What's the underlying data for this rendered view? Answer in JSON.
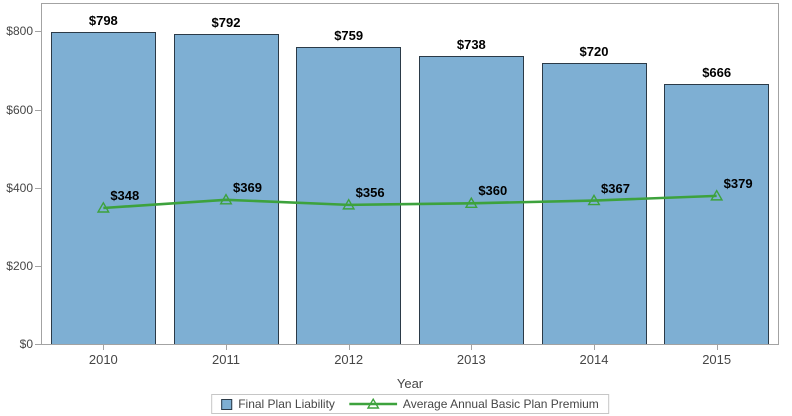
{
  "chart_data": {
    "type": "bar",
    "categories": [
      "2010",
      "2011",
      "2012",
      "2013",
      "2014",
      "2015"
    ],
    "series": [
      {
        "name": "Final Plan Liability",
        "type": "bar",
        "values": [
          798,
          792,
          759,
          738,
          720,
          666
        ],
        "data_labels": [
          "$798",
          "$792",
          "$759",
          "$738",
          "$720",
          "$666"
        ]
      },
      {
        "name": "Average Annual Basic Plan Premium",
        "type": "line",
        "marker": "hollow-triangle",
        "values": [
          348,
          369,
          356,
          360,
          367,
          379
        ],
        "data_labels": [
          "$348",
          "$369",
          "$356",
          "$360",
          "$367",
          "$379"
        ]
      }
    ],
    "title": "",
    "xlabel": "Year",
    "ylabel": "",
    "ylim": [
      0,
      870
    ],
    "yticks": [
      0,
      200,
      400,
      600,
      800
    ],
    "ytick_labels": [
      "$0",
      "$200",
      "$400",
      "$600",
      "$800"
    ],
    "grid": false,
    "legend_position": "bottom-center"
  },
  "colors": {
    "background": "#FFFFFF",
    "bar_fill": "#7EAFD3",
    "bar_border": "#2B3A47",
    "line": "#3DA23D",
    "axis": "#A3A3A3",
    "tick_label": "#464646",
    "data_label": "#000000",
    "legend_border": "#C6C6C6"
  }
}
